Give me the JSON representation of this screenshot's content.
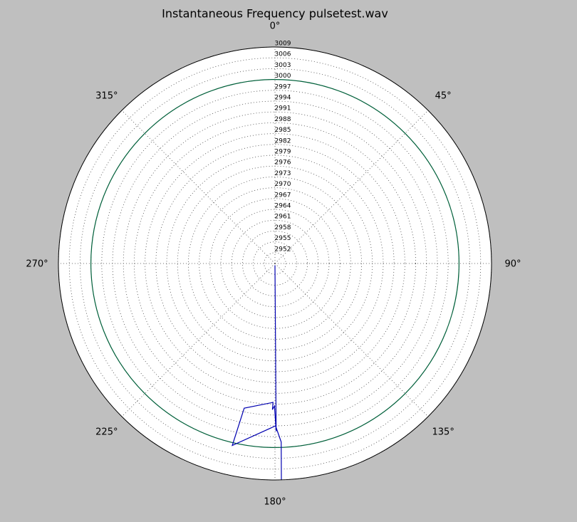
{
  "chart_data": {
    "type": "polar",
    "title": "Instantaneous Frequency  pulsetest.wav",
    "rlim": [
      2949,
      3009
    ],
    "rticks": [
      2952,
      2955,
      2958,
      2961,
      2964,
      2967,
      2970,
      2973,
      2976,
      2979,
      2982,
      2985,
      2988,
      2991,
      2994,
      2997,
      3000,
      3003,
      3006,
      3009
    ],
    "thetaticks": [
      {
        "value": 0,
        "label": "0°"
      },
      {
        "value": 45,
        "label": "45°"
      },
      {
        "value": 90,
        "label": "90°"
      },
      {
        "value": 135,
        "label": "135°"
      },
      {
        "value": 180,
        "label": "180°"
      },
      {
        "value": 225,
        "label": "225°"
      },
      {
        "value": 270,
        "label": "270°"
      },
      {
        "value": 315,
        "label": "315°"
      }
    ],
    "grid": true,
    "series": [
      {
        "color": "#00603a",
        "theta": [
          0,
          90,
          180,
          270,
          360
        ],
        "values": [
          3000,
          3000,
          3000,
          3000,
          3000
        ]
      },
      {
        "color": "#0000b0",
        "theta": [
          180,
          179.6,
          180.2,
          181,
          180.8,
          192,
          193.2,
          179.8,
          178,
          178.3
        ],
        "values": [
          2949.5,
          2995.5,
          2988.5,
          2989.5,
          2987.5,
          2990,
          3000.8,
          2994,
          2998.5,
          3009
        ]
      }
    ]
  }
}
